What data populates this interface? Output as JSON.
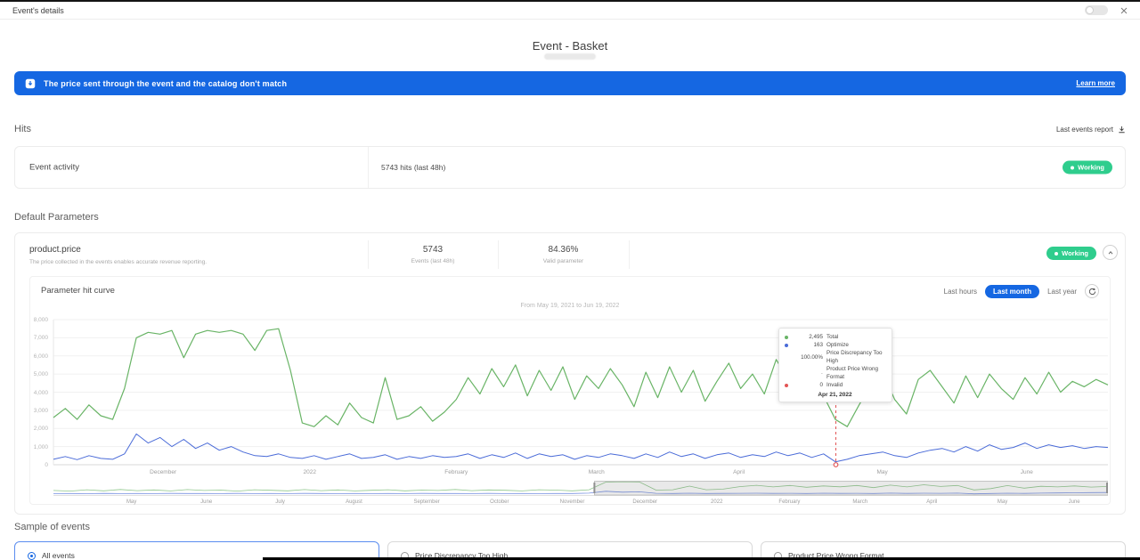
{
  "window": {
    "title": "Event's details"
  },
  "page": {
    "title": "Event - Basket"
  },
  "banner": {
    "text": "The price sent through the event and the catalog don't match",
    "link_label": "Learn more",
    "color": "#1567e2"
  },
  "hits": {
    "label": "Hits",
    "report_label": "Last events report",
    "card": {
      "name": "Event activity",
      "value": "5743 hits (last 48h)",
      "status": "Working"
    }
  },
  "default_parameters": {
    "label": "Default Parameters",
    "param": {
      "name": "product.price",
      "description": "The price collected in the events enables accurate revenue reporting.",
      "events_value": "5743",
      "events_label": "Events (last 48h)",
      "valid_value": "84.36%",
      "valid_label": "Valid parameter",
      "status": "Working"
    },
    "chart_card": {
      "title": "Parameter hit curve",
      "range_buttons": [
        "Last hours",
        "Last month",
        "Last year"
      ],
      "active_range": "Last month",
      "caption": "From May 19, 2021 to Jun 19, 2022"
    }
  },
  "samples": {
    "label": "Sample of events",
    "options": [
      {
        "label": "All events",
        "selected": true
      },
      {
        "label": "Price Discrepancy Too High",
        "selected": false
      },
      {
        "label": "Product Price Wrong Format",
        "selected": false
      }
    ]
  },
  "colors": {
    "accent_blue": "#1567e2",
    "status_green": "#2fcd8d",
    "line_green": "#69b466",
    "line_blue": "#4a6bd8",
    "alert_red": "#e25555"
  },
  "chart_data": {
    "type": "line",
    "title": "Parameter hit curve",
    "caption": "From May 19, 2021 to Jun 19, 2022",
    "ylim": [
      0,
      8000
    ],
    "grid": true,
    "y_ticks": [
      "8,000",
      "7,000",
      "6,000",
      "5,000",
      "4,000",
      "3,000",
      "2,000",
      "1,000",
      "0"
    ],
    "x_labels": [
      {
        "label": "December",
        "pos": 0.104
      },
      {
        "label": "2022",
        "pos": 0.243
      },
      {
        "label": "February",
        "pos": 0.382
      },
      {
        "label": "March",
        "pos": 0.515
      },
      {
        "label": "April",
        "pos": 0.65
      },
      {
        "label": "May",
        "pos": 0.786
      },
      {
        "label": "June",
        "pos": 0.923
      }
    ],
    "series": [
      {
        "name": "Total",
        "color": "#69b466",
        "values": [
          2600,
          3100,
          2500,
          3300,
          2700,
          2500,
          4200,
          7000,
          7300,
          7200,
          7400,
          5900,
          7200,
          7400,
          7300,
          7400,
          7200,
          6300,
          7400,
          7500,
          5200,
          2300,
          2100,
          2700,
          2200,
          3400,
          2600,
          2300,
          4800,
          2500,
          2700,
          3200,
          2400,
          2900,
          3600,
          4800,
          3900,
          5300,
          4300,
          5500,
          3800,
          5200,
          4100,
          5400,
          3600,
          4900,
          4200,
          5300,
          4400,
          3200,
          5100,
          3700,
          5400,
          4000,
          5200,
          3500,
          4600,
          5600,
          4200,
          5000,
          3900,
          5800,
          4700,
          5300,
          4100,
          3800,
          2495,
          2100,
          3300,
          4400,
          5100,
          3600,
          2800,
          4700,
          5200,
          4300,
          3400,
          4900,
          3700,
          5000,
          4200,
          3600,
          4800,
          3900,
          5100,
          4000,
          4600,
          4300,
          4700,
          4400
        ]
      },
      {
        "name": "Optimize",
        "color": "#4a6bd8",
        "values": [
          300,
          450,
          280,
          500,
          350,
          300,
          600,
          1700,
          1200,
          1500,
          1000,
          1400,
          900,
          1200,
          800,
          1000,
          700,
          500,
          450,
          600,
          400,
          350,
          500,
          300,
          450,
          600,
          350,
          400,
          550,
          300,
          450,
          350,
          500,
          400,
          450,
          600,
          350,
          550,
          400,
          650,
          350,
          600,
          450,
          550,
          300,
          500,
          400,
          600,
          500,
          350,
          600,
          400,
          700,
          450,
          600,
          350,
          550,
          650,
          400,
          550,
          450,
          700,
          500,
          650,
          400,
          600,
          163,
          300,
          500,
          600,
          700,
          500,
          400,
          650,
          800,
          900,
          700,
          1000,
          750,
          1100,
          850,
          950,
          1200,
          900,
          1100,
          950,
          1050,
          900,
          1000,
          950
        ]
      }
    ],
    "cursor": {
      "pos": 0.742,
      "date": "Apr 21, 2022",
      "color": "#e25555"
    },
    "tooltip": {
      "rows": [
        {
          "dot": "#69b466",
          "value": "2,495",
          "label": "Total"
        },
        {
          "dot": "#4a6bd8",
          "value": "163",
          "label": "Optimize"
        },
        {
          "dot": null,
          "value": "100.00%",
          "label": "Price Discrepancy Too High"
        },
        {
          "dot": null,
          "value": "·",
          "label": "Product Price Wrong Format"
        },
        {
          "dot": "#e25555",
          "value": "0",
          "label": "Invalid"
        }
      ],
      "date": "Apr 21, 2022"
    },
    "brush": {
      "selection": [
        0.513,
        1.0
      ],
      "x_labels": [
        {
          "label": "May",
          "pos": 0.074
        },
        {
          "label": "June",
          "pos": 0.145
        },
        {
          "label": "July",
          "pos": 0.215
        },
        {
          "label": "August",
          "pos": 0.285
        },
        {
          "label": "September",
          "pos": 0.354
        },
        {
          "label": "October",
          "pos": 0.423
        },
        {
          "label": "November",
          "pos": 0.492
        },
        {
          "label": "December",
          "pos": 0.561
        },
        {
          "label": "2022",
          "pos": 0.629
        },
        {
          "label": "February",
          "pos": 0.698
        },
        {
          "label": "March",
          "pos": 0.765
        },
        {
          "label": "April",
          "pos": 0.833
        },
        {
          "label": "May",
          "pos": 0.9
        },
        {
          "label": "June",
          "pos": 0.968
        }
      ],
      "series": [
        {
          "name": "Total",
          "color": "#69b466",
          "values": [
            2200,
            1800,
            2600,
            2000,
            2800,
            2100,
            2500,
            1900,
            2700,
            2200,
            2400,
            1800,
            2600,
            2300,
            2000,
            2700,
            2100,
            2500,
            1900,
            2300,
            2600,
            2000,
            2400,
            2200,
            2800,
            2100,
            2500,
            2300,
            1900,
            2600,
            2400,
            2000,
            2600,
            7200,
            7400,
            7300,
            2400,
            2600,
            4800,
            2600,
            3000,
            4500,
            5300,
            4300,
            5200,
            4100,
            4900,
            4400,
            5200,
            3900,
            5400,
            4300,
            5600,
            4600,
            5200,
            2495,
            3300,
            5100,
            3600,
            4700,
            4300,
            4900,
            4200,
            4600
          ]
        },
        {
          "name": "Optimize",
          "color": "#4a6bd8",
          "values": [
            300,
            400,
            280,
            450,
            320,
            380,
            300,
            420,
            350,
            400,
            300,
            450,
            320,
            380,
            300,
            420,
            350,
            300,
            400,
            320,
            380,
            300,
            420,
            350,
            400,
            300,
            450,
            320,
            380,
            300,
            400,
            350,
            600,
            1700,
            1200,
            1400,
            500,
            400,
            550,
            400,
            450,
            500,
            550,
            450,
            500,
            400,
            550,
            450,
            500,
            400,
            600,
            450,
            550,
            500,
            600,
            163,
            400,
            550,
            450,
            600,
            700,
            800,
            900,
            950
          ]
        }
      ]
    }
  }
}
